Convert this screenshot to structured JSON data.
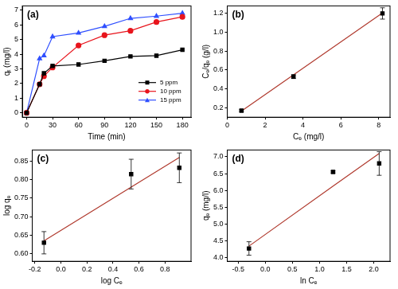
{
  "chart_data": [
    {
      "type": "line",
      "title": "(a)",
      "x_label": "Time (min)",
      "y_label": "qₜ (mg/l)",
      "x": [
        0,
        15,
        20,
        30,
        60,
        90,
        120,
        150,
        180
      ],
      "series": [
        {
          "name": "5 ppm",
          "color": "#000000",
          "marker": "square",
          "values": [
            0,
            1.95,
            2.7,
            3.2,
            3.3,
            3.55,
            3.85,
            3.9,
            4.3
          ]
        },
        {
          "name": "10 ppm",
          "color": "#e8141c",
          "marker": "circle",
          "values": [
            0,
            1.95,
            2.5,
            3.1,
            4.6,
            5.3,
            5.6,
            6.2,
            6.55
          ]
        },
        {
          "name": "15 ppm",
          "color": "#2f4fff",
          "marker": "triangle",
          "values": [
            0,
            3.7,
            3.9,
            5.2,
            5.45,
            5.9,
            6.45,
            6.6,
            6.8
          ]
        }
      ],
      "xlim": [
        -5,
        190
      ],
      "xticks": [
        0,
        30,
        60,
        90,
        120,
        150,
        180
      ],
      "ylim": [
        -0.3,
        7.3
      ],
      "yticks": [
        0,
        1,
        2,
        3,
        4,
        5,
        6,
        7
      ],
      "grid": false,
      "legend": "lower right"
    },
    {
      "type": "scatter",
      "title": "(b)",
      "x_label": "Cₑ (mg/l)",
      "y_label": "Cₑ/qₑ (g/l)",
      "x": [
        0.75,
        3.5,
        8.2
      ],
      "series": [
        {
          "color": "#000000",
          "marker": "square",
          "values": [
            0.17,
            0.53,
            1.2
          ],
          "errors": [
            0.01,
            0.02,
            0.06
          ]
        },
        {
          "type": "line",
          "color": "#b03a2e",
          "marker": "none",
          "line_style": "solid",
          "values": [
            0.165,
            0.549,
            1.205
          ]
        }
      ],
      "xlim": [
        0,
        8.6
      ],
      "xticks": [
        0,
        2,
        4,
        6,
        8
      ],
      "ylim": [
        0.1,
        1.28
      ],
      "yticks": [
        0.2,
        0.4,
        0.6,
        0.8,
        {
          "value": 1.0,
          "label": "1.0"
        },
        1.2
      ],
      "grid": false
    },
    {
      "type": "scatter",
      "title": "(c)",
      "x_label": "log Cₑ",
      "y_label": "log qₑ",
      "x": [
        -0.13,
        0.54,
        0.91
      ],
      "series": [
        {
          "color": "#000000",
          "marker": "square",
          "values": [
            0.63,
            0.815,
            0.832
          ],
          "errors": [
            0.03,
            0.04,
            0.04
          ]
        },
        {
          "type": "line",
          "color": "#b03a2e",
          "marker": "none",
          "line_style": "solid",
          "values": [
            0.635,
            0.78,
            0.86
          ]
        }
      ],
      "xlim": [
        -0.22,
        1.0
      ],
      "xticks": [
        {
          "value": -0.2,
          "label": "-0.2"
        },
        {
          "value": 0,
          "label": "0.0"
        },
        0.2,
        0.4,
        0.6,
        0.8
      ],
      "ylim": [
        0.58,
        0.88
      ],
      "yticks": [
        {
          "value": 0.6,
          "label": "0.60"
        },
        0.65,
        {
          "value": 0.7,
          "label": "0.70"
        },
        0.75,
        {
          "value": 0.8,
          "label": "0.80"
        },
        0.85
      ],
      "grid": false
    },
    {
      "type": "scatter",
      "title": "(d)",
      "x_label": "ln Cₑ",
      "y_label": "qₑ (mg/l)",
      "x": [
        -0.3,
        1.25,
        2.1
      ],
      "series": [
        {
          "color": "#000000",
          "marker": "square",
          "values": [
            4.28,
            6.55,
            6.8
          ],
          "errors": [
            0.2,
            0.03,
            0.35
          ]
        },
        {
          "type": "line",
          "color": "#b03a2e",
          "marker": "none",
          "line_style": "solid",
          "values": [
            4.35,
            6.13,
            7.1
          ]
        }
      ],
      "xlim": [
        -0.7,
        2.3
      ],
      "xticks": [
        {
          "value": -0.5,
          "label": "-0.5"
        },
        {
          "value": 0,
          "label": "0.0"
        },
        0.5,
        {
          "value": 1,
          "label": "1.0"
        },
        1.5,
        {
          "value": 2,
          "label": "2.0"
        }
      ],
      "ylim": [
        3.9,
        7.2
      ],
      "yticks": [
        {
          "value": 4,
          "label": "4.0"
        },
        4.5,
        {
          "value": 5,
          "label": "5.0"
        },
        5.5,
        {
          "value": 6,
          "label": "6.0"
        },
        6.5,
        {
          "value": 7,
          "label": "7.0"
        }
      ],
      "grid": false
    }
  ]
}
